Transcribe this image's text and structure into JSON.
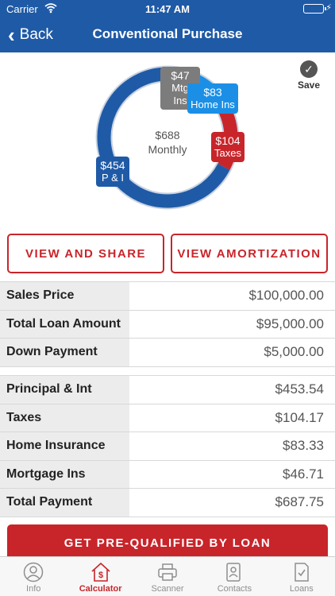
{
  "status_bar": {
    "carrier": "Carrier",
    "time": "11:47 AM"
  },
  "nav": {
    "back_label": "Back",
    "title": "Conventional Purchase"
  },
  "save_label": "Save",
  "chart_data": {
    "type": "pie",
    "style": "donut",
    "center": {
      "amount": "$688",
      "label": "Monthly"
    },
    "slices": [
      {
        "label": "P & I",
        "amount": "$454",
        "value": 454,
        "color": "#1f5aa6"
      },
      {
        "label": "Mtg Ins",
        "amount": "$47",
        "value": 47,
        "color": "#7c7c7c"
      },
      {
        "label": "Home Ins",
        "amount": "$83",
        "value": 83,
        "color": "#1b8fe6"
      },
      {
        "label": "Taxes",
        "amount": "$104",
        "value": 104,
        "color": "#c8252b"
      }
    ]
  },
  "buttons": {
    "share": "VIEW AND SHARE",
    "amortization": "VIEW AMORTIZATION",
    "prequalify": "GET PRE-QUALIFIED BY LOAN"
  },
  "loan_table": [
    {
      "label": "Sales Price",
      "value": "$100,000.00"
    },
    {
      "label": "Total Loan Amount",
      "value": "$95,000.00"
    },
    {
      "label": "Down Payment",
      "value": "$5,000.00"
    }
  ],
  "payment_table": [
    {
      "label": "Principal & Int",
      "value": "$453.54"
    },
    {
      "label": "Taxes",
      "value": "$104.17"
    },
    {
      "label": "Home Insurance",
      "value": "$83.33"
    },
    {
      "label": "Mortgage Ins",
      "value": "$46.71"
    },
    {
      "label": "Total Payment",
      "value": "$687.75"
    }
  ],
  "tabs": [
    {
      "label": "Info",
      "icon": "person-circle-icon"
    },
    {
      "label": "Calculator",
      "icon": "house-dollar-icon",
      "active": true
    },
    {
      "label": "Scanner",
      "icon": "printer-icon"
    },
    {
      "label": "Contacts",
      "icon": "contacts-icon"
    },
    {
      "label": "Loans",
      "icon": "document-check-icon"
    }
  ],
  "colors": {
    "brand_blue": "#1f5aa6",
    "accent_red": "#c8252b"
  }
}
